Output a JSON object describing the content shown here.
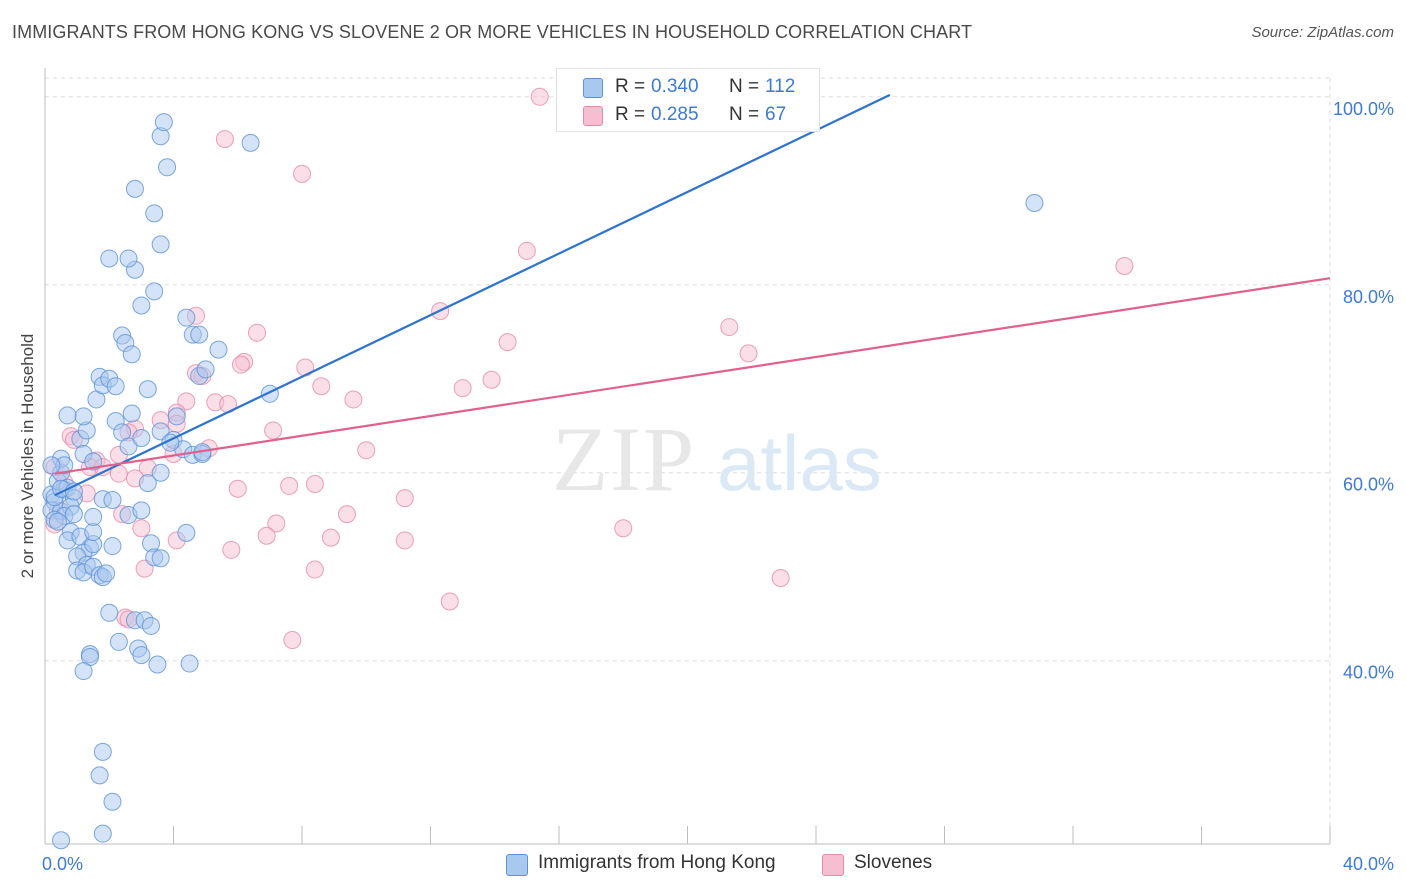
{
  "title": "IMMIGRANTS FROM HONG KONG VS SLOVENE 2 OR MORE VEHICLES IN HOUSEHOLD CORRELATION CHART",
  "source": "Source: ZipAtlas.com",
  "watermark": {
    "zip": "ZIP",
    "atlas": "atlas"
  },
  "legend": {
    "r_label": "R =",
    "n_label": "N =",
    "rows": [
      {
        "name": "Immigrants from Hong Kong",
        "r": "0.340",
        "n": "112"
      },
      {
        "name": "Slovenes",
        "r": "0.285",
        "n": "67"
      }
    ]
  },
  "colors": {
    "blue_fill": "#a9c8ef",
    "blue_stroke": "#5b92d8",
    "blue_line": "#2f74d0",
    "pink_fill": "#f6bfd1",
    "pink_stroke": "#e78aa8",
    "pink_line": "#e2608c",
    "tick_text": "#3d7bd6",
    "grid": "#dddddd"
  },
  "chart_data": {
    "type": "scatter",
    "title": "IMMIGRANTS FROM HONG KONG VS SLOVENE 2 OR MORE VEHICLES IN HOUSEHOLD CORRELATION CHART",
    "xlabel": "",
    "ylabel": "2 or more Vehicles in Household",
    "xlim": [
      0,
      40
    ],
    "ylim": [
      20.5,
      102
    ],
    "x_tick_labels": [
      {
        "value": 0,
        "label": "0.0%"
      },
      {
        "value": 40,
        "label": "40.0%"
      }
    ],
    "x_minor_ticks": [
      4,
      8,
      12,
      16,
      20,
      24,
      28,
      32,
      36
    ],
    "y_ticks": [
      {
        "value": 40,
        "label": "40.0%"
      },
      {
        "value": 60,
        "label": "60.0%"
      },
      {
        "value": 80,
        "label": "80.0%"
      },
      {
        "value": 100,
        "label": "100.0%"
      }
    ],
    "series": [
      {
        "name": "Immigrants from Hong Kong",
        "color": "blue",
        "trend": {
          "x0": 0.3,
          "y0": 57.6,
          "x1": 26.3,
          "y1": 100.2
        },
        "points": [
          [
            0.2,
            57.7
          ],
          [
            0.3,
            56.9
          ],
          [
            0.2,
            56.0
          ],
          [
            0.5,
            55.9
          ],
          [
            0.3,
            57.4
          ],
          [
            0.6,
            58.2
          ],
          [
            0.4,
            59.1
          ],
          [
            0.5,
            60.0
          ],
          [
            0.7,
            58.4
          ],
          [
            0.9,
            57.3
          ],
          [
            0.8,
            56.4
          ],
          [
            0.6,
            55.4
          ],
          [
            0.3,
            55.0
          ],
          [
            0.8,
            53.7
          ],
          [
            0.7,
            52.8
          ],
          [
            1.1,
            53.2
          ],
          [
            1.4,
            52.0
          ],
          [
            1.2,
            51.5
          ],
          [
            1.0,
            51.1
          ],
          [
            1.3,
            50.2
          ],
          [
            1.0,
            49.6
          ],
          [
            1.2,
            49.4
          ],
          [
            1.5,
            50.0
          ],
          [
            1.7,
            49.1
          ],
          [
            1.8,
            48.9
          ],
          [
            1.9,
            49.3
          ],
          [
            1.5,
            52.4
          ],
          [
            1.5,
            53.7
          ],
          [
            1.5,
            55.3
          ],
          [
            1.8,
            57.2
          ],
          [
            2.1,
            57.1
          ],
          [
            2.6,
            55.5
          ],
          [
            2.1,
            52.2
          ],
          [
            0.5,
            61.5
          ],
          [
            0.6,
            60.8
          ],
          [
            1.1,
            63.6
          ],
          [
            1.3,
            64.5
          ],
          [
            1.2,
            66.0
          ],
          [
            0.7,
            66.1
          ],
          [
            1.6,
            67.8
          ],
          [
            1.7,
            70.2
          ],
          [
            1.8,
            69.3
          ],
          [
            2.0,
            70.0
          ],
          [
            2.2,
            69.2
          ],
          [
            2.2,
            65.5
          ],
          [
            2.4,
            64.3
          ],
          [
            2.6,
            62.8
          ],
          [
            2.7,
            66.3
          ],
          [
            3.0,
            63.7
          ],
          [
            3.2,
            68.9
          ],
          [
            3.2,
            58.9
          ],
          [
            3.6,
            60.0
          ],
          [
            3.6,
            64.4
          ],
          [
            4.0,
            63.5
          ],
          [
            4.1,
            66.0
          ],
          [
            4.3,
            62.5
          ],
          [
            4.6,
            61.9
          ],
          [
            4.9,
            62.0
          ],
          [
            4.8,
            70.3
          ],
          [
            5.0,
            71.0
          ],
          [
            5.4,
            73.1
          ],
          [
            4.6,
            74.7
          ],
          [
            4.8,
            74.7
          ],
          [
            4.4,
            76.5
          ],
          [
            2.4,
            74.6
          ],
          [
            2.5,
            73.8
          ],
          [
            2.7,
            72.6
          ],
          [
            3.0,
            77.8
          ],
          [
            3.4,
            79.3
          ],
          [
            2.8,
            81.6
          ],
          [
            2.6,
            82.8
          ],
          [
            2.0,
            82.8
          ],
          [
            3.6,
            84.3
          ],
          [
            2.8,
            90.2
          ],
          [
            3.4,
            87.6
          ],
          [
            3.8,
            92.5
          ],
          [
            3.6,
            95.8
          ],
          [
            3.7,
            97.3
          ],
          [
            6.4,
            95.1
          ],
          [
            7.0,
            68.4
          ],
          [
            3.0,
            56.0
          ],
          [
            3.3,
            52.5
          ],
          [
            3.4,
            51.0
          ],
          [
            3.6,
            50.9
          ],
          [
            4.4,
            53.6
          ],
          [
            2.0,
            45.1
          ],
          [
            2.8,
            44.3
          ],
          [
            3.1,
            44.3
          ],
          [
            3.3,
            43.7
          ],
          [
            2.3,
            42.0
          ],
          [
            2.9,
            41.3
          ],
          [
            3.0,
            40.6
          ],
          [
            1.4,
            40.7
          ],
          [
            1.4,
            40.4
          ],
          [
            3.5,
            39.6
          ],
          [
            4.5,
            39.7
          ],
          [
            1.2,
            38.9
          ],
          [
            1.8,
            30.3
          ],
          [
            1.7,
            27.8
          ],
          [
            2.1,
            25.0
          ],
          [
            1.8,
            21.6
          ],
          [
            0.5,
            20.9
          ],
          [
            0.5,
            58.3
          ],
          [
            0.9,
            58.0
          ],
          [
            0.2,
            60.8
          ],
          [
            0.4,
            54.8
          ],
          [
            1.2,
            62.0
          ],
          [
            1.5,
            61.2
          ],
          [
            30.8,
            88.7
          ],
          [
            3.9,
            63.2
          ],
          [
            4.9,
            62.2
          ],
          [
            0.9,
            55.6
          ]
        ]
      },
      {
        "name": "Slovenes",
        "color": "pink",
        "trend": {
          "x0": 0.3,
          "y0": 59.9,
          "x1": 40.0,
          "y1": 80.7
        },
        "points": [
          [
            15.4,
            100.0
          ],
          [
            5.6,
            95.5
          ],
          [
            8.0,
            91.8
          ],
          [
            15.0,
            83.6
          ],
          [
            33.6,
            82.0
          ],
          [
            4.7,
            76.7
          ],
          [
            6.6,
            74.9
          ],
          [
            12.3,
            77.2
          ],
          [
            14.4,
            73.9
          ],
          [
            21.3,
            75.5
          ],
          [
            21.9,
            72.7
          ],
          [
            6.2,
            71.8
          ],
          [
            6.1,
            71.5
          ],
          [
            8.1,
            71.2
          ],
          [
            4.7,
            70.6
          ],
          [
            4.9,
            70.3
          ],
          [
            8.6,
            69.2
          ],
          [
            13.0,
            69.0
          ],
          [
            13.9,
            69.9
          ],
          [
            9.6,
            67.8
          ],
          [
            5.3,
            67.5
          ],
          [
            5.7,
            67.3
          ],
          [
            4.4,
            67.6
          ],
          [
            4.1,
            66.4
          ],
          [
            3.6,
            65.6
          ],
          [
            4.1,
            65.2
          ],
          [
            2.8,
            64.7
          ],
          [
            7.1,
            64.5
          ],
          [
            2.6,
            64.3
          ],
          [
            0.8,
            63.9
          ],
          [
            0.9,
            63.5
          ],
          [
            4.0,
            62.0
          ],
          [
            5.1,
            62.6
          ],
          [
            10.0,
            62.4
          ],
          [
            2.3,
            61.9
          ],
          [
            1.6,
            61.3
          ],
          [
            1.4,
            60.6
          ],
          [
            1.8,
            60.6
          ],
          [
            3.2,
            60.5
          ],
          [
            0.3,
            60.6
          ],
          [
            2.3,
            59.9
          ],
          [
            2.8,
            59.4
          ],
          [
            0.6,
            59.0
          ],
          [
            8.4,
            58.8
          ],
          [
            7.6,
            58.6
          ],
          [
            1.3,
            57.8
          ],
          [
            6.0,
            58.3
          ],
          [
            11.2,
            57.3
          ],
          [
            9.4,
            55.6
          ],
          [
            7.2,
            54.6
          ],
          [
            0.3,
            54.5
          ],
          [
            2.4,
            55.6
          ],
          [
            3.0,
            54.1
          ],
          [
            4.1,
            52.8
          ],
          [
            6.9,
            53.3
          ],
          [
            8.9,
            53.1
          ],
          [
            11.2,
            52.8
          ],
          [
            5.8,
            51.8
          ],
          [
            18.0,
            54.1
          ],
          [
            3.1,
            49.8
          ],
          [
            8.4,
            49.7
          ],
          [
            22.9,
            48.8
          ],
          [
            12.6,
            46.3
          ],
          [
            2.5,
            44.6
          ],
          [
            2.6,
            44.4
          ],
          [
            7.7,
            42.2
          ],
          [
            0.4,
            56.0
          ]
        ]
      }
    ]
  }
}
